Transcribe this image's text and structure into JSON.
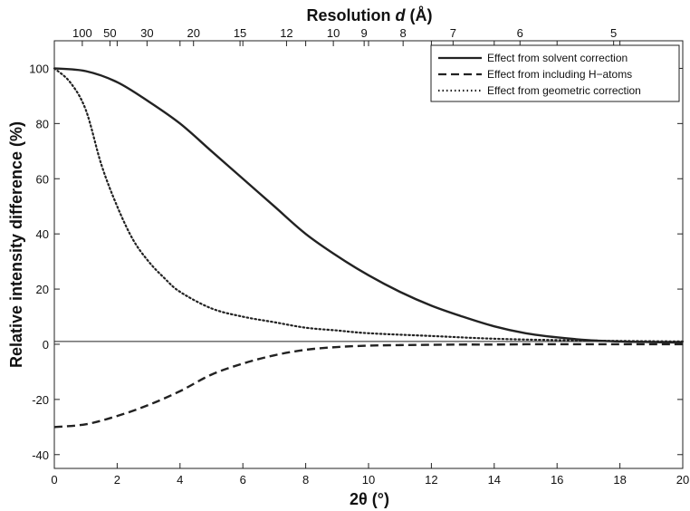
{
  "chart_data": {
    "type": "line",
    "xlabel": "2θ (°)",
    "ylabel": "Relative intensity difference (%)",
    "top_xlabel_prefix": "Resolution ",
    "top_xlabel_var": "d",
    "top_xlabel_unit": " (Å)",
    "xlim": [
      0,
      20
    ],
    "ylim": [
      -45,
      110
    ],
    "x_ticks": [
      0,
      2,
      4,
      6,
      8,
      10,
      12,
      14,
      16,
      18,
      20
    ],
    "y_ticks": [
      -40,
      -20,
      0,
      20,
      40,
      60,
      80,
      100
    ],
    "top_ticks": [
      {
        "label": "100",
        "x": 0.89
      },
      {
        "label": "50",
        "x": 1.77
      },
      {
        "label": "30",
        "x": 2.95
      },
      {
        "label": "20",
        "x": 4.43
      },
      {
        "label": "15",
        "x": 5.91
      },
      {
        "label": "12",
        "x": 7.39
      },
      {
        "label": "10",
        "x": 8.88
      },
      {
        "label": "9",
        "x": 9.86
      },
      {
        "label": "8",
        "x": 11.1
      },
      {
        "label": "7",
        "x": 12.69
      },
      {
        "label": "6",
        "x": 14.82
      },
      {
        "label": "5",
        "x": 17.8
      }
    ],
    "reference_line_y": 1,
    "legend_position": "top-right",
    "series": [
      {
        "name": "Effect from solvent correction",
        "style": "solid",
        "color": "#222222",
        "x": [
          0,
          1,
          2,
          3,
          4,
          5,
          6,
          7,
          8,
          9,
          10,
          11,
          12,
          13,
          14,
          15,
          16,
          17,
          18,
          19,
          20
        ],
        "y": [
          100,
          99,
          95,
          88,
          80,
          70,
          60,
          50,
          40,
          32,
          25,
          19,
          14,
          10,
          6.5,
          4,
          2.5,
          1.5,
          1,
          0.8,
          0.6
        ]
      },
      {
        "name": "Effect from including H−atoms",
        "style": "dashed",
        "color": "#222222",
        "x": [
          0,
          1,
          2,
          3,
          4,
          5,
          6,
          7,
          8,
          9,
          10,
          11,
          12,
          13,
          14,
          15,
          16,
          17,
          18,
          19,
          20
        ],
        "y": [
          -30,
          -29,
          -26,
          -22,
          -17,
          -11,
          -7,
          -4,
          -2,
          -1,
          -0.5,
          -0.3,
          -0.2,
          -0.1,
          -0.1,
          0,
          0,
          0,
          0,
          0,
          0
        ]
      },
      {
        "name": "Effect from geometric correction",
        "style": "dotted",
        "color": "#222222",
        "x": [
          0,
          0.5,
          1,
          1.5,
          2,
          2.5,
          3,
          3.5,
          4,
          5,
          6,
          7,
          8,
          9,
          10,
          12,
          14,
          16,
          18,
          20
        ],
        "y": [
          100,
          95,
          85,
          65,
          50,
          38,
          30,
          24,
          19,
          13,
          10,
          8,
          6,
          5,
          4,
          3,
          2,
          1.5,
          1.2,
          1
        ]
      }
    ]
  }
}
